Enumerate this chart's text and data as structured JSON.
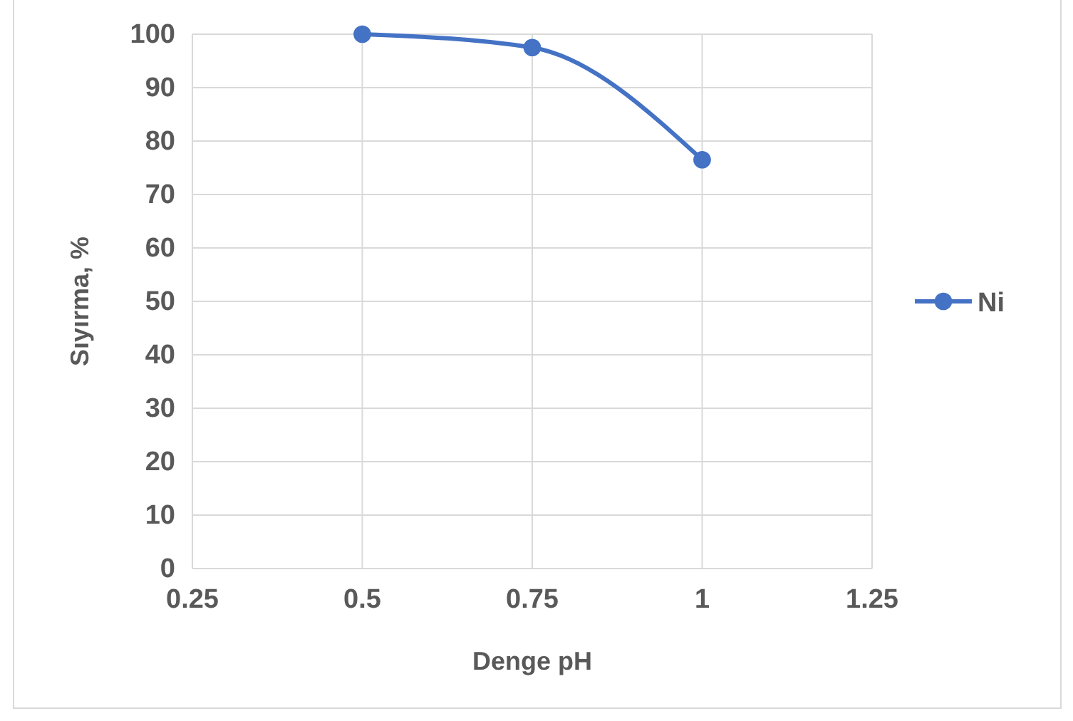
{
  "chart_data": {
    "type": "line",
    "xlabel": "Denge pH",
    "ylabel": "Sıyırma, %",
    "x": [
      0.5,
      0.75,
      1
    ],
    "series": [
      {
        "name": "Ni",
        "color": "#4472c4",
        "values": [
          100,
          97.5,
          76.5
        ]
      }
    ],
    "xlim": [
      0.25,
      1.25
    ],
    "xticks": [
      0.25,
      0.5,
      0.75,
      1,
      1.25
    ],
    "ylim": [
      0,
      100
    ],
    "yticks": [
      0,
      10,
      20,
      30,
      40,
      50,
      60,
      70,
      80,
      90,
      100
    ],
    "grid": true,
    "legend": "right",
    "marker": "circle",
    "line_style": "solid"
  }
}
